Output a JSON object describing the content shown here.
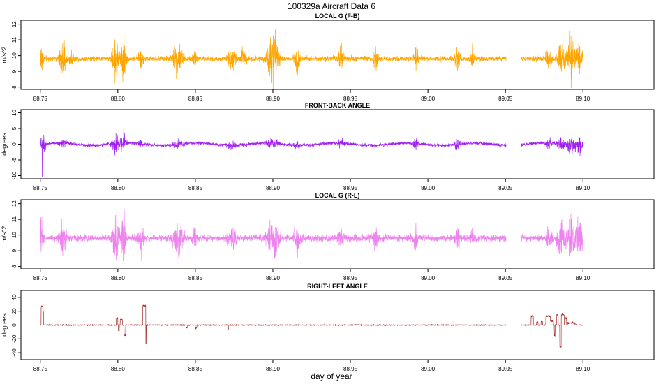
{
  "figure": {
    "title": "100329a    Aircraft Data 6",
    "xlabel": "day of year"
  },
  "chart_data": [
    {
      "type": "line",
      "title": "LOCAL G (F-B)",
      "ylabel": "m/s^2",
      "color": "#FFA500",
      "xlim": [
        88.7375,
        89.1458
      ],
      "ylim": [
        7.85,
        12.25
      ],
      "xticks": [
        88.75,
        88.8,
        88.85,
        88.9,
        88.95,
        89.0,
        89.05,
        89.1
      ],
      "xtick_labels": [
        "88.75",
        "88.80",
        "88.85",
        "88.90",
        "88.95",
        "89.00",
        "89.05",
        "89.10"
      ],
      "yticks": [
        8,
        9,
        10,
        11,
        12
      ],
      "ytick_labels": [
        "8",
        "9",
        "10",
        "11",
        "12"
      ],
      "baseline": 9.8,
      "noise": 0.12,
      "data_gap": [
        89.0505,
        89.06
      ],
      "range": [
        88.75,
        89.1
      ],
      "bursts": [
        [
          88.7505,
          0.0012,
          1.4
        ],
        [
          88.7645,
          0.0015,
          1.3
        ],
        [
          88.77,
          0.001,
          0.6
        ],
        [
          88.7985,
          0.0015,
          1.6
        ],
        [
          88.8035,
          0.0012,
          1.8
        ],
        [
          88.815,
          0.001,
          1.0
        ],
        [
          88.8388,
          0.0022,
          1.2
        ],
        [
          88.8495,
          0.001,
          0.8
        ],
        [
          88.8735,
          0.0016,
          1.0
        ],
        [
          88.881,
          0.0012,
          0.8
        ],
        [
          88.8998,
          0.0025,
          1.9
        ],
        [
          88.9155,
          0.0012,
          1.2
        ],
        [
          88.9438,
          0.0012,
          1.0
        ],
        [
          88.9665,
          0.001,
          0.8
        ],
        [
          88.9923,
          0.001,
          1.0
        ],
        [
          89.019,
          0.001,
          1.0
        ],
        [
          89.029,
          0.001,
          0.6
        ],
        [
          89.078,
          0.0012,
          0.8
        ],
        [
          89.086,
          0.0018,
          1.2
        ],
        [
          89.092,
          0.0015,
          1.8
        ],
        [
          89.0975,
          0.0015,
          1.6
        ]
      ]
    },
    {
      "type": "line",
      "title": "FRONT-BACK ANGLE",
      "ylabel": "degrees",
      "color": "#A020F0",
      "xlim": [
        88.7375,
        89.1458
      ],
      "ylim": [
        -11,
        11
      ],
      "xticks": [
        88.75,
        88.8,
        88.85,
        88.9,
        88.95,
        89.0,
        89.05,
        89.1
      ],
      "xtick_labels": [
        "88.75",
        "88.80",
        "88.85",
        "88.90",
        "88.95",
        "89.00",
        "89.05",
        "89.10"
      ],
      "yticks": [
        -10,
        -5,
        0,
        5,
        10
      ],
      "ytick_labels": [
        "-10",
        "-5",
        "0",
        "5",
        "10"
      ],
      "baseline": 0,
      "noise": 0.35,
      "data_gap": [
        89.0505,
        89.06
      ],
      "range": [
        88.75,
        89.1
      ],
      "spikes": [
        [
          88.7512,
          -10.5
        ],
        [
          88.7505,
          2.0
        ],
        [
          89.1002,
          10.5
        ]
      ],
      "bursts": [
        [
          88.752,
          0.001,
          4.0
        ],
        [
          88.7645,
          0.0015,
          1.2
        ],
        [
          88.7985,
          0.0015,
          3.5
        ],
        [
          88.8035,
          0.0012,
          4.0
        ],
        [
          88.815,
          0.001,
          1.5
        ],
        [
          88.8388,
          0.0022,
          1.5
        ],
        [
          88.8735,
          0.0016,
          1.5
        ],
        [
          88.8998,
          0.0025,
          1.8
        ],
        [
          88.9155,
          0.0012,
          1.8
        ],
        [
          88.9438,
          0.0012,
          1.5
        ],
        [
          88.9923,
          0.001,
          2.5
        ],
        [
          89.019,
          0.001,
          2.5
        ],
        [
          89.078,
          0.0012,
          2.0
        ],
        [
          89.086,
          0.0018,
          2.5
        ],
        [
          89.092,
          0.0015,
          4.5
        ],
        [
          89.0975,
          0.0015,
          3.5
        ]
      ]
    },
    {
      "type": "line",
      "title": "LOCAL G (R-L)",
      "ylabel": "m/s^2",
      "color": "#EE82EE",
      "xlim": [
        88.7375,
        89.1458
      ],
      "ylim": [
        7.85,
        12.25
      ],
      "xticks": [
        88.75,
        88.8,
        88.85,
        88.9,
        88.95,
        89.0,
        89.05,
        89.1
      ],
      "xtick_labels": [
        "88.75",
        "88.80",
        "88.85",
        "88.90",
        "88.95",
        "89.00",
        "89.05",
        "89.10"
      ],
      "yticks": [
        8,
        9,
        10,
        11,
        12
      ],
      "ytick_labels": [
        "8",
        "9",
        "10",
        "11",
        "12"
      ],
      "baseline": 9.8,
      "noise": 0.15,
      "data_gap": [
        89.0505,
        89.06
      ],
      "range": [
        88.75,
        89.1
      ],
      "bursts": [
        [
          88.7505,
          0.0012,
          1.3
        ],
        [
          88.7645,
          0.0015,
          1.3
        ],
        [
          88.7985,
          0.0015,
          1.6
        ],
        [
          88.8035,
          0.0012,
          1.8
        ],
        [
          88.815,
          0.001,
          1.0
        ],
        [
          88.8388,
          0.0022,
          1.3
        ],
        [
          88.8495,
          0.001,
          0.8
        ],
        [
          88.8735,
          0.0016,
          1.2
        ],
        [
          88.8998,
          0.0025,
          1.8
        ],
        [
          88.9155,
          0.0012,
          1.2
        ],
        [
          88.9438,
          0.0012,
          1.0
        ],
        [
          88.9665,
          0.001,
          0.8
        ],
        [
          88.9923,
          0.001,
          1.0
        ],
        [
          89.019,
          0.001,
          1.0
        ],
        [
          89.029,
          0.001,
          0.6
        ],
        [
          89.078,
          0.0012,
          0.8
        ],
        [
          89.086,
          0.0018,
          1.3
        ],
        [
          89.092,
          0.0015,
          1.8
        ],
        [
          89.0975,
          0.0015,
          1.6
        ]
      ]
    },
    {
      "type": "line",
      "title": "RIGHT-LEFT ANGLE",
      "ylabel": "degrees",
      "color": "#A52A2A",
      "xlim": [
        88.7375,
        89.1458
      ],
      "ylim": [
        -50,
        50
      ],
      "xticks": [
        88.75,
        88.8,
        88.85,
        88.9,
        88.95,
        89.0,
        89.05,
        89.1
      ],
      "xtick_labels": [
        "88.75",
        "88.80",
        "88.85",
        "88.90",
        "88.95",
        "89.00",
        "89.05",
        "89.10"
      ],
      "yticks": [
        -40,
        -20,
        0,
        20,
        40
      ],
      "ytick_labels": [
        "-40",
        "-20",
        "0",
        "20",
        "40"
      ],
      "baseline": 0,
      "noise": 0.4,
      "data_gap": [
        89.0505,
        89.06
      ],
      "range": [
        88.75,
        89.1
      ],
      "steps": [
        [
          88.7505,
          88.7518,
          27
        ],
        [
          88.7518,
          88.7522,
          18
        ],
        [
          88.799,
          88.8,
          10
        ],
        [
          88.8002,
          88.801,
          -8
        ],
        [
          88.8015,
          88.803,
          8
        ],
        [
          88.804,
          88.805,
          -15
        ],
        [
          88.816,
          88.818,
          28
        ],
        [
          88.818,
          88.8183,
          -27
        ],
        [
          88.844,
          88.845,
          -3
        ],
        [
          88.85,
          88.851,
          -4
        ],
        [
          88.871,
          88.8715,
          -6
        ],
        [
          89.0665,
          89.068,
          13
        ],
        [
          89.07,
          89.071,
          5
        ],
        [
          89.073,
          89.074,
          5
        ],
        [
          89.076,
          89.079,
          13
        ],
        [
          89.079,
          89.081,
          6
        ],
        [
          89.0815,
          89.082,
          -15
        ],
        [
          89.083,
          89.084,
          15
        ],
        [
          89.085,
          89.086,
          -32
        ],
        [
          89.086,
          89.088,
          15
        ],
        [
          89.0885,
          89.0895,
          10
        ],
        [
          89.09,
          89.095,
          3
        ]
      ]
    }
  ]
}
